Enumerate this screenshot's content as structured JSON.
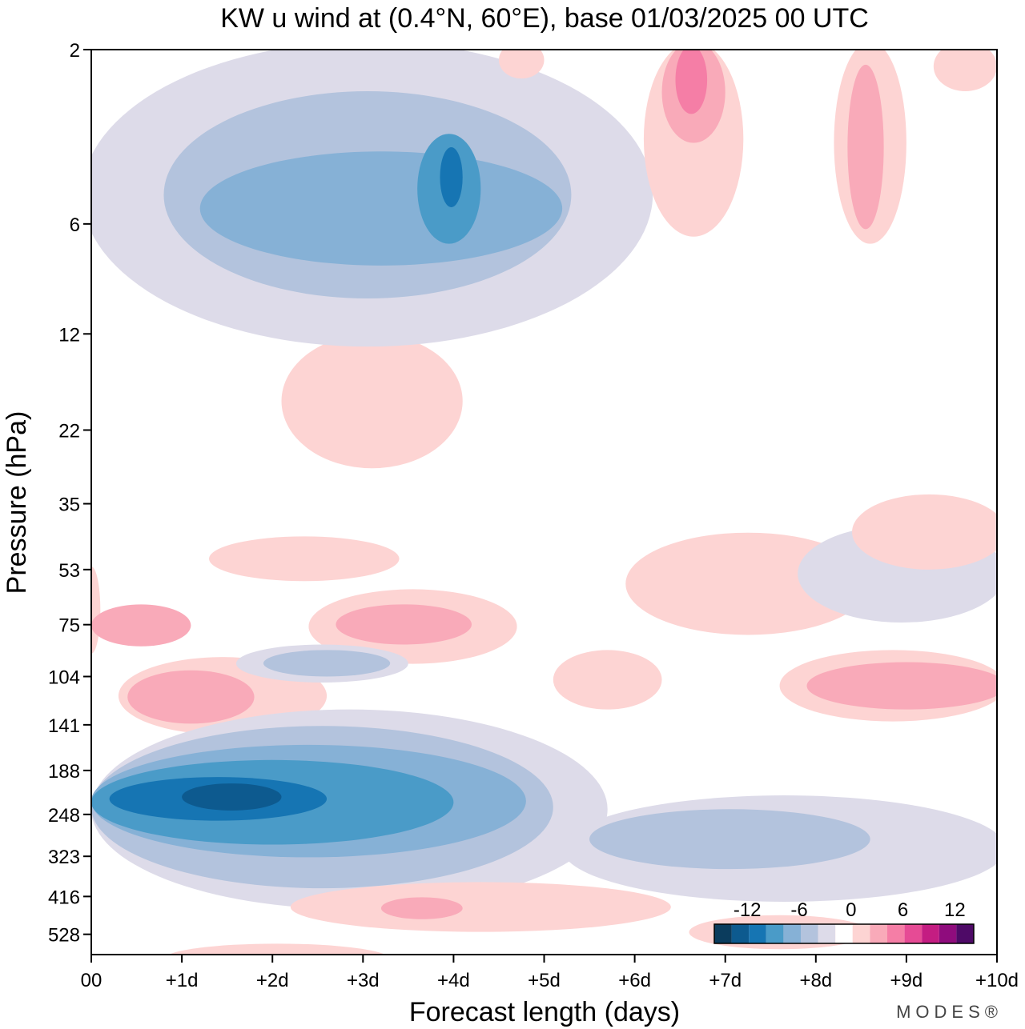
{
  "chart_data": {
    "type": "heatmap",
    "title": "KW u wind at (0.4°N, 60°E),  base 01/03/2025  00 UTC",
    "xlabel": "Forecast length (days)",
    "ylabel": "Pressure (hPa)",
    "x_ticks": [
      "00",
      "+1d",
      "+2d",
      "+3d",
      "+4d",
      "+5d",
      "+6d",
      "+7d",
      "+8d",
      "+9d",
      "+10d"
    ],
    "y_ticks": [
      "2",
      "6",
      "12",
      "22",
      "35",
      "53",
      "75",
      "104",
      "141",
      "188",
      "248",
      "323",
      "416",
      "528"
    ],
    "xlim": [
      0,
      10
    ],
    "y_scale": "log",
    "colorbar": {
      "labels": [
        "-12",
        "-6",
        "0",
        "6",
        "12"
      ],
      "colors": [
        "#0b3c5d",
        "#0d5a8f",
        "#1675b3",
        "#4a9bc8",
        "#86b1d6",
        "#b3c3dd",
        "#dddbe9",
        "#ffffff",
        "#fdd4d3",
        "#f9aab9",
        "#f57ea6",
        "#e64b95",
        "#c41d82",
        "#8f0c7d",
        "#4e0a67"
      ]
    },
    "regions": [
      {
        "level": "+3",
        "color": "#fdd4d3",
        "x": [
          -0.1,
          0.1
        ],
        "y": [
          52,
          90
        ]
      },
      {
        "level": "+6",
        "color": "#f9aab9",
        "x": [
          0.0,
          1.1
        ],
        "y": [
          66,
          86
        ]
      },
      {
        "level": "+3",
        "color": "#fdd4d3",
        "x": [
          0.3,
          2.6
        ],
        "y": [
          92,
          150
        ]
      },
      {
        "level": "+6",
        "color": "#f9aab9",
        "x": [
          0.4,
          1.8
        ],
        "y": [
          100,
          140
        ]
      },
      {
        "level": "+3",
        "color": "#fdd4d3",
        "x": [
          2.4,
          4.7
        ],
        "y": [
          60,
          96
        ]
      },
      {
        "level": "+6",
        "color": "#f9aab9",
        "x": [
          2.7,
          4.2
        ],
        "y": [
          66,
          85
        ]
      },
      {
        "level": "-3",
        "color": "#dddbe9",
        "x": [
          1.6,
          3.5
        ],
        "y": [
          85,
          108
        ]
      },
      {
        "level": "-6",
        "color": "#b3c3dd",
        "x": [
          1.9,
          3.3
        ],
        "y": [
          88,
          104
        ]
      },
      {
        "level": "-3",
        "color": "#dddbe9",
        "x": [
          0.0,
          5.7
        ],
        "y": [
          128,
          450
        ]
      },
      {
        "level": "-6",
        "color": "#b3c3dd",
        "x": [
          0.0,
          5.1
        ],
        "y": [
          142,
          395
        ]
      },
      {
        "level": "-9",
        "color": "#86b1d6",
        "x": [
          0.0,
          4.8
        ],
        "y": [
          160,
          325
        ]
      },
      {
        "level": "-12",
        "color": "#4a9bc8",
        "x": [
          0.0,
          4.0
        ],
        "y": [
          176,
          300
        ]
      },
      {
        "level": "-15",
        "color": "#1675b3",
        "x": [
          0.2,
          2.6
        ],
        "y": [
          196,
          258
        ]
      },
      {
        "level": "-18",
        "color": "#0d5a8f",
        "x": [
          1.0,
          2.1
        ],
        "y": [
          204,
          242
        ]
      },
      {
        "level": "-3",
        "color": "#dddbe9",
        "x": [
          5.2,
          10.1
        ],
        "y": [
          220,
          430
        ]
      },
      {
        "level": "-6",
        "color": "#b3c3dd",
        "x": [
          5.5,
          8.6
        ],
        "y": [
          240,
          350
        ]
      },
      {
        "level": "+3",
        "color": "#fdd4d3",
        "x": [
          2.2,
          6.4
        ],
        "y": [
          380,
          520
        ]
      },
      {
        "level": "+6",
        "color": "#f9aab9",
        "x": [
          3.2,
          4.1
        ],
        "y": [
          418,
          480
        ]
      },
      {
        "level": "+3",
        "color": "#fdd4d3",
        "x": [
          0.8,
          3.3
        ],
        "y": [
          560,
          680
        ]
      },
      {
        "level": "+3",
        "color": "#fdd4d3",
        "x": [
          6.6,
          8.6
        ],
        "y": [
          468,
          580
        ]
      },
      {
        "level": "+3",
        "color": "#fdd4d3",
        "x": [
          7.6,
          10.1
        ],
        "y": [
          88,
          138
        ]
      },
      {
        "level": "+6",
        "color": "#f9aab9",
        "x": [
          7.9,
          10.1
        ],
        "y": [
          95,
          128
        ]
      },
      {
        "level": "+3",
        "color": "#fdd4d3",
        "x": [
          5.1,
          6.3
        ],
        "y": [
          88,
          128
        ]
      },
      {
        "level": "+3",
        "color": "#fdd4d3",
        "x": [
          5.9,
          8.6
        ],
        "y": [
          42,
          80
        ]
      },
      {
        "level": "-3",
        "color": "#dddbe9",
        "x": [
          7.8,
          10.1
        ],
        "y": [
          40,
          74
        ]
      },
      {
        "level": "+3",
        "color": "#fdd4d3",
        "x": [
          8.4,
          10.1
        ],
        "y": [
          33,
          53
        ]
      },
      {
        "level": "+3",
        "color": "#fdd4d3",
        "x": [
          1.3,
          3.4
        ],
        "y": [
          43,
          57
        ]
      },
      {
        "level": "+3",
        "color": "#fdd4d3",
        "x": [
          2.1,
          4.1
        ],
        "y": [
          12,
          28
        ]
      },
      {
        "level": "-3",
        "color": "#dddbe9",
        "x": [
          -0.1,
          6.2
        ],
        "y": [
          1.9,
          13
        ]
      },
      {
        "level": "-6",
        "color": "#b3c3dd",
        "x": [
          0.8,
          5.3
        ],
        "y": [
          2.6,
          9.6
        ]
      },
      {
        "level": "-9",
        "color": "#86b1d6",
        "x": [
          1.2,
          5.2
        ],
        "y": [
          3.8,
          7.8
        ]
      },
      {
        "level": "-12",
        "color": "#4a9bc8",
        "x": [
          3.6,
          4.3
        ],
        "y": [
          3.4,
          6.8
        ]
      },
      {
        "level": "-15",
        "color": "#1675b3",
        "x": [
          3.85,
          4.1
        ],
        "y": [
          3.7,
          5.4
        ]
      },
      {
        "level": "+3",
        "color": "#fdd4d3",
        "x": [
          6.1,
          7.2
        ],
        "y": [
          1.9,
          6.5
        ]
      },
      {
        "level": "+6",
        "color": "#f9aab9",
        "x": [
          6.3,
          7.0
        ],
        "y": [
          1.9,
          3.6
        ]
      },
      {
        "level": "+9",
        "color": "#f57ea6",
        "x": [
          6.45,
          6.8
        ],
        "y": [
          1.95,
          3.0
        ]
      },
      {
        "level": "+3",
        "color": "#fdd4d3",
        "x": [
          8.2,
          9.0
        ],
        "y": [
          1.9,
          6.8
        ]
      },
      {
        "level": "+6",
        "color": "#f9aab9",
        "x": [
          8.35,
          8.75
        ],
        "y": [
          2.2,
          6.2
        ]
      },
      {
        "level": "+3",
        "color": "#fdd4d3",
        "x": [
          9.3,
          10.0
        ],
        "y": [
          1.9,
          2.6
        ]
      },
      {
        "level": "+3",
        "color": "#fdd4d3",
        "x": [
          4.5,
          5.0
        ],
        "y": [
          1.9,
          2.4
        ]
      }
    ]
  },
  "watermark": "MODES®"
}
